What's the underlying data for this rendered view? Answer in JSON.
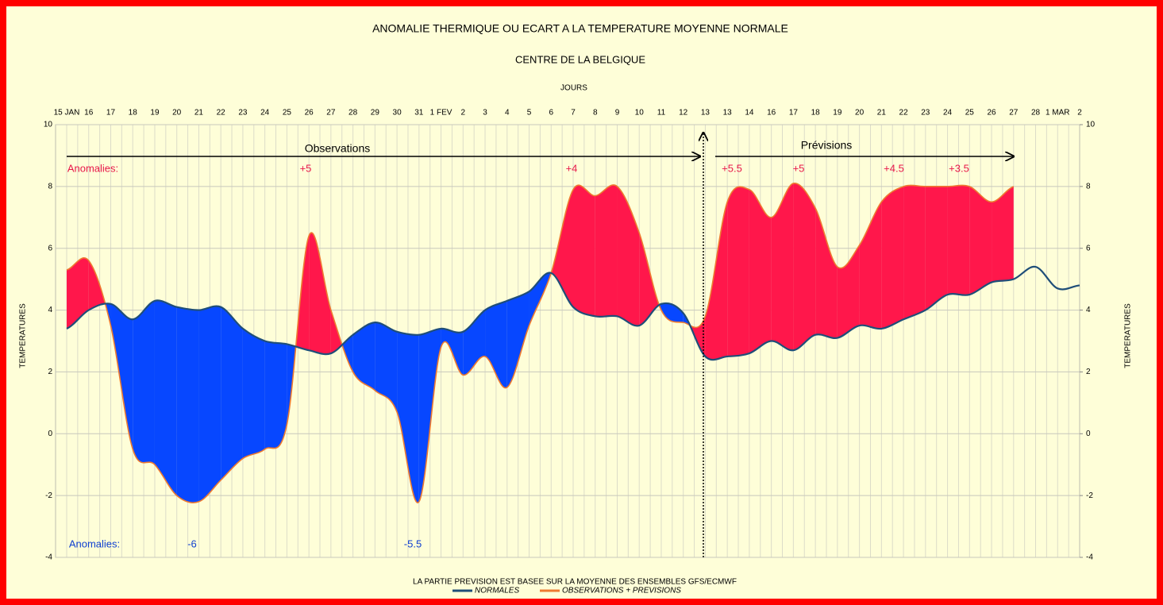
{
  "chart_data": {
    "type": "line",
    "title": "ANOMALIE THERMIQUE OU ECART A LA TEMPERATURE MOYENNE NORMALE",
    "subtitle": "CENTRE DE LA BELGIQUE",
    "x_label": "JOURS",
    "y_label": "TEMPERATURES",
    "y2_label": "TEMPERATURES",
    "note": "LA PARTIE PREVISION EST BASEE SUR LA MOYENNE DES ENSEMBLES GFS/ECMWF",
    "categories": [
      "15 JAN",
      "16",
      "17",
      "18",
      "19",
      "20",
      "21",
      "22",
      "23",
      "24",
      "25",
      "26",
      "27",
      "28",
      "29",
      "30",
      "31",
      "1 FEV",
      "2",
      "3",
      "4",
      "5",
      "6",
      "7",
      "8",
      "9",
      "10",
      "11",
      "12",
      "13",
      "13",
      "14",
      "16",
      "17",
      "18",
      "19",
      "20",
      "21",
      "22",
      "23",
      "24",
      "25",
      "26",
      "27",
      "28",
      "1 MAR",
      "2"
    ],
    "series": [
      {
        "name": "NORMALES",
        "color": "#1f4e79",
        "values": [
          3.4,
          4.0,
          4.2,
          3.7,
          4.3,
          4.1,
          4.0,
          4.1,
          3.4,
          3.0,
          2.9,
          2.7,
          2.6,
          3.2,
          3.6,
          3.3,
          3.2,
          3.4,
          3.3,
          4.0,
          4.3,
          4.6,
          5.2,
          4.1,
          3.8,
          3.8,
          3.5,
          4.2,
          3.9,
          2.5,
          2.5,
          2.6,
          3.0,
          2.7,
          3.2,
          3.1,
          3.5,
          3.4,
          3.7,
          4.0,
          4.5,
          4.5,
          4.9,
          5.0,
          5.4,
          4.7,
          4.8
        ]
      },
      {
        "name": "OBSERVATIONS + PREVISIONS",
        "color": "#ee7a30",
        "values": [
          5.3,
          5.6,
          3.5,
          -0.5,
          -1.0,
          -2.0,
          -2.2,
          -1.5,
          -0.8,
          -0.5,
          0.3,
          6.4,
          4.0,
          2.0,
          1.4,
          0.7,
          -2.2,
          2.8,
          1.9,
          2.5,
          1.5,
          3.5,
          5.2,
          7.9,
          7.7,
          8.0,
          6.5,
          4.0,
          3.6,
          3.8,
          7.5,
          7.9,
          7.0,
          8.1,
          7.3,
          5.4,
          6.1,
          7.5,
          8.0,
          8.0,
          8.0,
          8.0,
          7.5,
          8.0,
          null,
          null,
          null
        ]
      }
    ],
    "fill_above_color": "#ff174b",
    "fill_below_color": "#0747ff",
    "ylim": [
      -4,
      10
    ],
    "yticks": [
      -4,
      -2,
      0,
      2,
      4,
      6,
      8,
      10
    ],
    "y2lim": [
      -4,
      10
    ],
    "y2ticks": [
      -4,
      -2,
      0,
      2,
      4,
      6,
      8,
      10
    ],
    "grid": true,
    "annotations": [
      {
        "text": "Observations",
        "color": "#000000"
      },
      {
        "text": "Prévisions",
        "color": "#000000"
      },
      {
        "text": "Anomalies:",
        "color": "#e8174a"
      },
      {
        "text": "+5",
        "color": "#e8174a"
      },
      {
        "text": "+4",
        "color": "#e8174a"
      },
      {
        "text": "+5.5",
        "color": "#e8174a"
      },
      {
        "text": "+5",
        "color": "#e8174a"
      },
      {
        "text": "+4.5",
        "color": "#e8174a"
      },
      {
        "text": "+3.5",
        "color": "#e8174a"
      },
      {
        "text": "Anomalies:",
        "color": "#1040d0"
      },
      {
        "text": "-6",
        "color": "#1040d0"
      },
      {
        "text": "-5.5",
        "color": "#1040d0"
      }
    ]
  }
}
